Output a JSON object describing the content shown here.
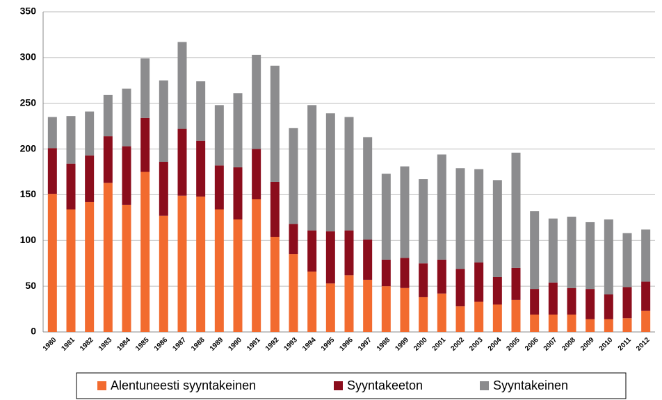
{
  "chart_data": {
    "type": "stacked-bar",
    "categories": [
      "1980",
      "1981",
      "1982",
      "1983",
      "1984",
      "1985",
      "1986",
      "1987",
      "1988",
      "1989",
      "1990",
      "1991",
      "1992",
      "1993",
      "1994",
      "1995",
      "1996",
      "1997",
      "1998",
      "1999",
      "2000",
      "2001",
      "2002",
      "2003",
      "2004",
      "2005",
      "2006",
      "2007",
      "2008",
      "2009",
      "2010",
      "2011",
      "2012"
    ],
    "series": [
      {
        "name": "Alentuneesti syyntakeinen",
        "color": "#f26b2f",
        "values": [
          151,
          134,
          142,
          163,
          139,
          175,
          127,
          149,
          148,
          134,
          123,
          145,
          104,
          85,
          66,
          53,
          62,
          57,
          50,
          48,
          38,
          42,
          28,
          33,
          30,
          35,
          19,
          19,
          19,
          14,
          14,
          15,
          23
        ]
      },
      {
        "name": "Syyntakeeton",
        "color": "#8b0d1c",
        "values": [
          50,
          50,
          51,
          51,
          64,
          59,
          59,
          73,
          61,
          48,
          57,
          55,
          60,
          33,
          45,
          57,
          49,
          44,
          29,
          33,
          37,
          37,
          41,
          43,
          30,
          35,
          28,
          35,
          29,
          33,
          27,
          34,
          32
        ]
      },
      {
        "name": "Syyntakeinen",
        "color": "#8c8c8e",
        "values": [
          34,
          52,
          48,
          45,
          63,
          65,
          89,
          95,
          65,
          66,
          81,
          103,
          127,
          105,
          137,
          129,
          124,
          112,
          94,
          100,
          92,
          115,
          110,
          102,
          106,
          126,
          85,
          70,
          78,
          73,
          82,
          59,
          57
        ]
      }
    ],
    "ylim": [
      0,
      350
    ],
    "yticks": [
      0,
      50,
      100,
      150,
      200,
      250,
      300,
      350
    ],
    "grid": true
  }
}
